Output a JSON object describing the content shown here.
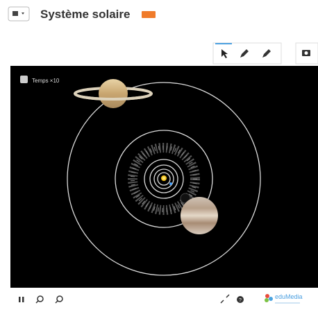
{
  "header": {
    "title": "Système solaire"
  },
  "canvas": {
    "checkbox_label": "Temps ×10"
  },
  "footer": {
    "logo": "eduMedia"
  }
}
